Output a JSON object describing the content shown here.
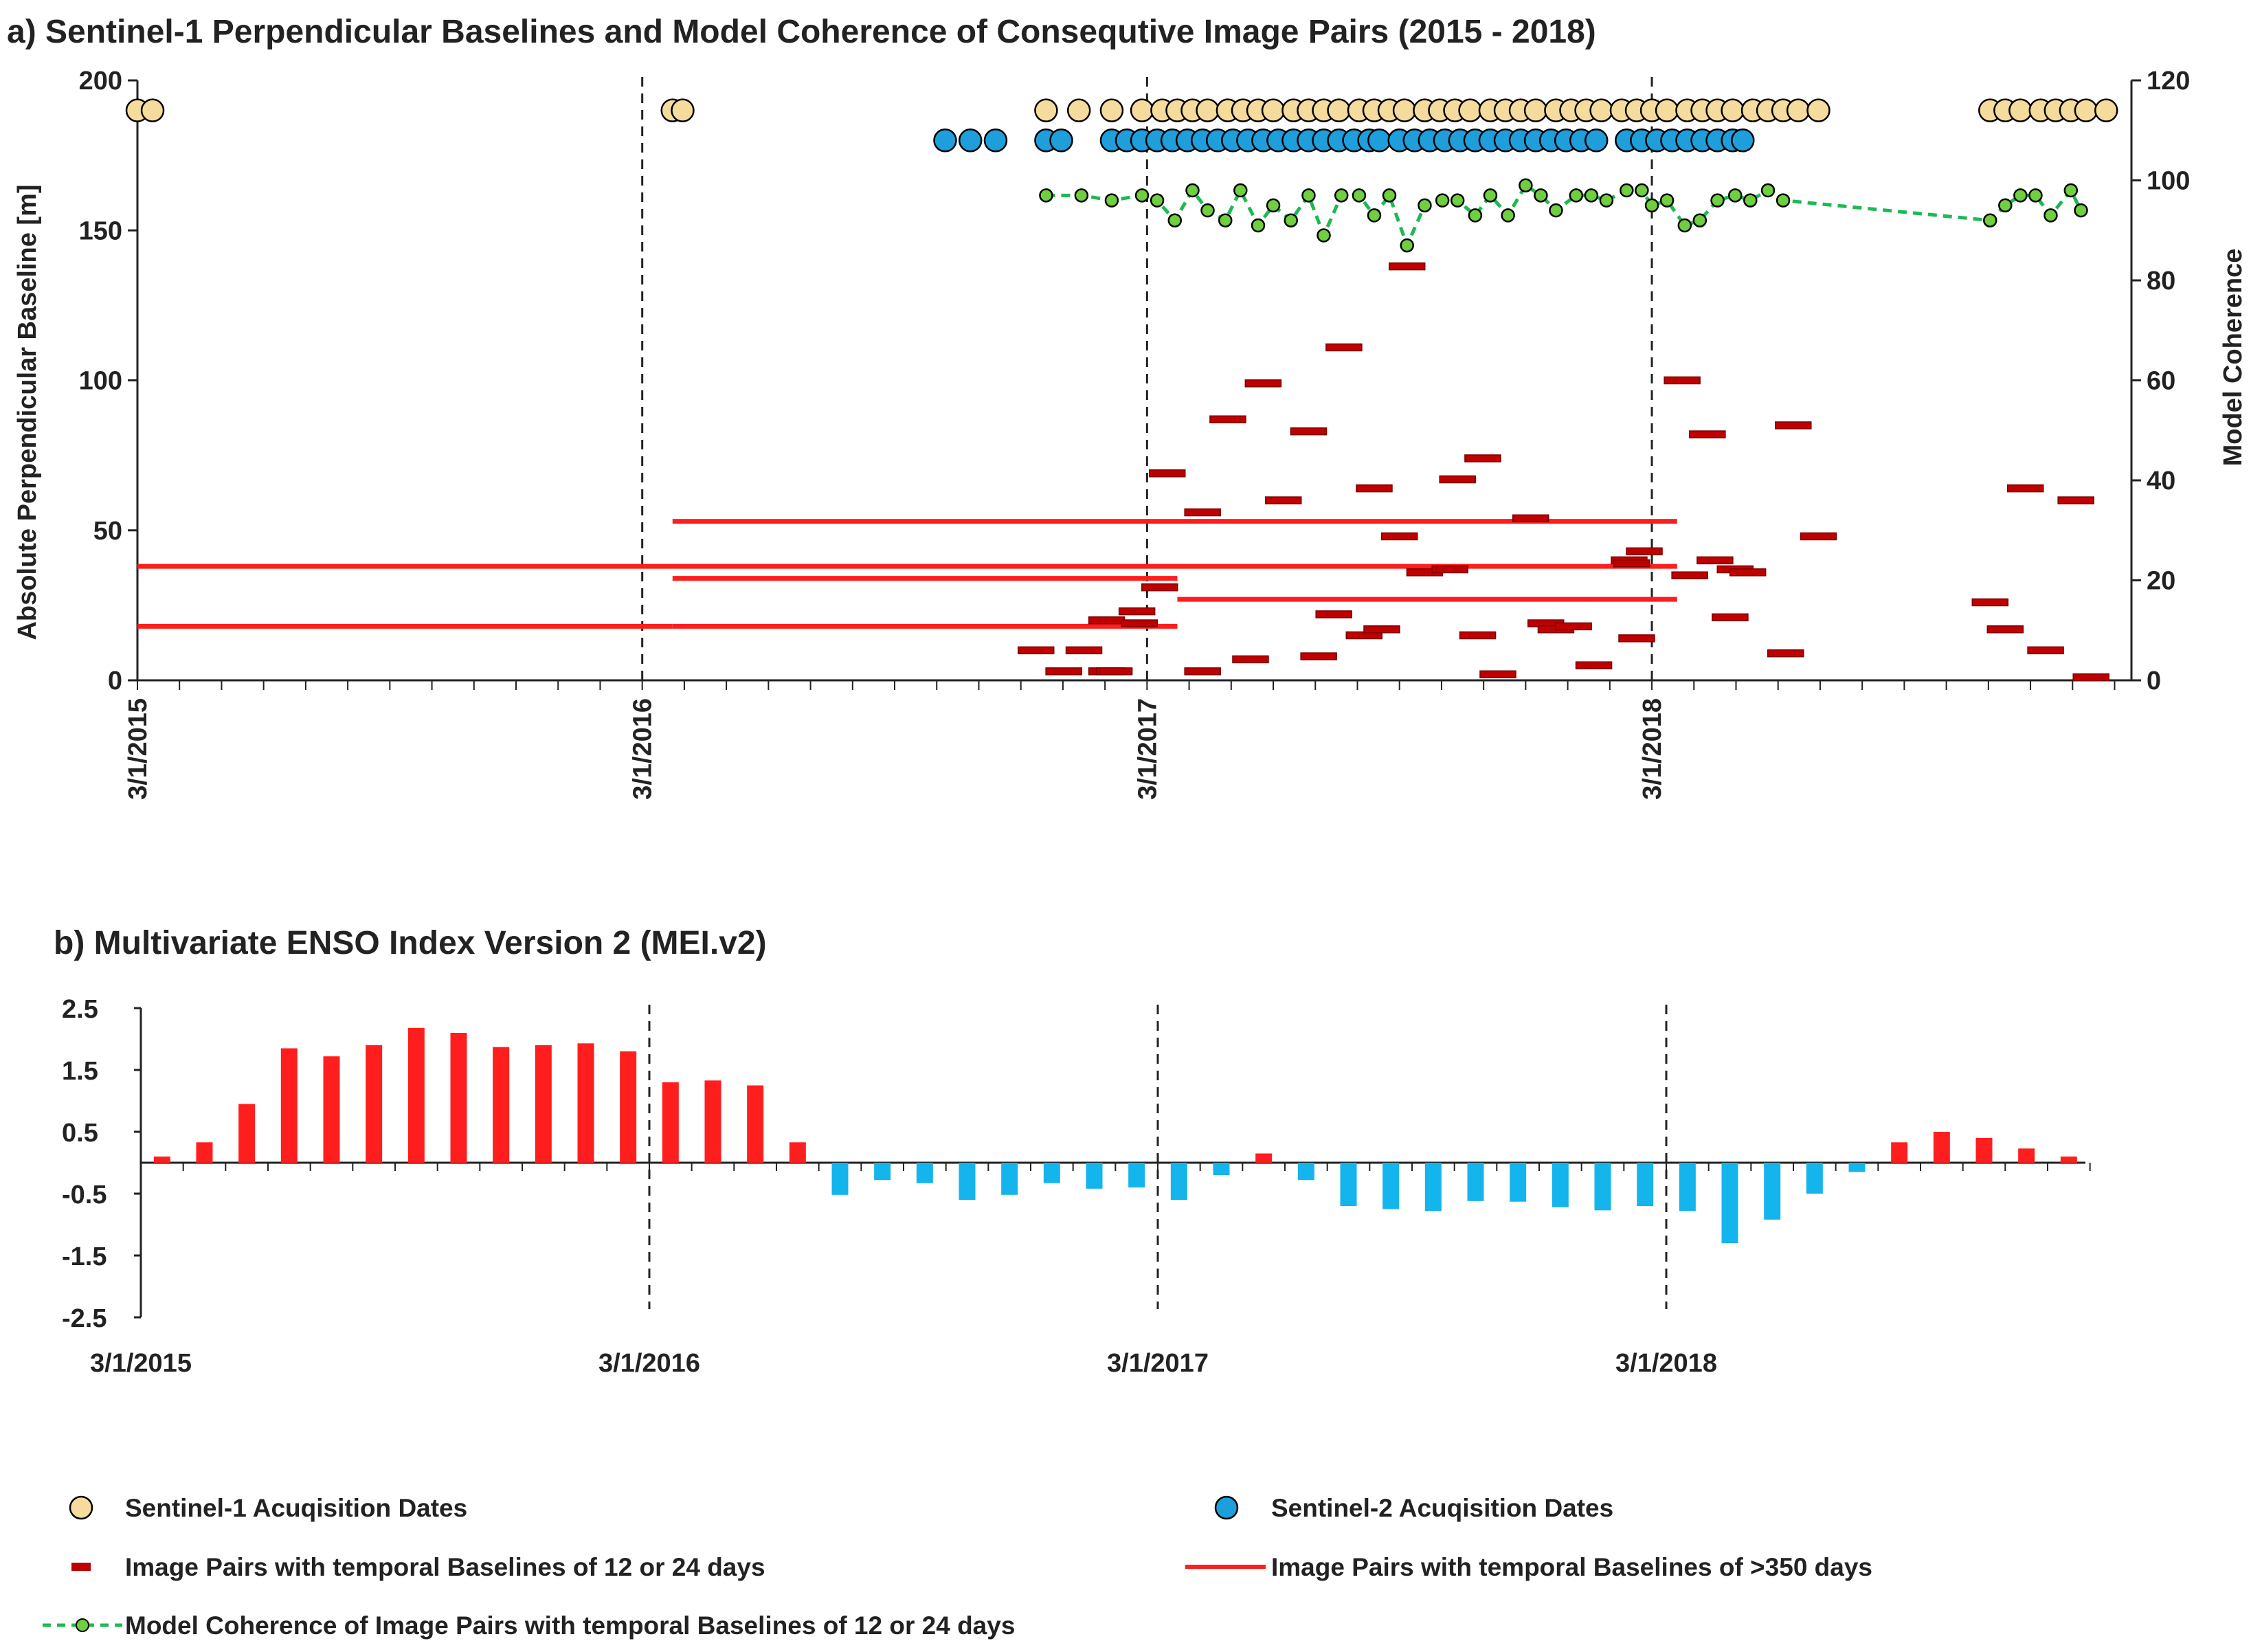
{
  "colors": {
    "s1": "#F5DC9C",
    "s2": "#1E9FDB",
    "pair_short": "#C00000",
    "pair_long": "#FF1E1E",
    "coherence_line": "#1DB954",
    "coherence_fill": "#6FCF3F",
    "mei_pos": "#FF1E1E",
    "mei_neg": "#14B4EC",
    "axis": "#222222"
  },
  "chart_data": [
    {
      "id": "a",
      "type": "scatter",
      "title": "a) Sentinel-1 Perpendicular Baselines and Model Coherence of Consequtive Image Pairs (2015 - 2018)",
      "ylabel": "Absolute Perpendicular Baseline [m]",
      "y2label": "Model Coherence",
      "ylim": [
        0,
        200
      ],
      "y2lim": [
        0,
        120
      ],
      "yticks": [
        "0",
        "50",
        "100",
        "150",
        "200"
      ],
      "y2ticks": [
        "0",
        "20",
        "40",
        "60",
        "80",
        "100",
        "120"
      ],
      "xlim_years": [
        2015.0,
        2018.95
      ],
      "xticks": [
        {
          "label": "3/1/2015",
          "x": 2015.0
        },
        {
          "label": "3/1/2016",
          "x": 2016.0
        },
        {
          "label": "3/1/2017",
          "x": 2017.0
        },
        {
          "label": "3/1/2018",
          "x": 2018.0
        }
      ],
      "dashed_lines": [
        2016.0,
        2017.0,
        2018.0
      ],
      "series": [
        {
          "name": "Sentinel-1 Acuqisition Dates",
          "kind": "s1",
          "y": 190,
          "x": [
            2015.0,
            2015.03,
            2016.06,
            2016.08,
            2016.8,
            2016.865,
            2016.93,
            2016.99,
            2017.03,
            2017.06,
            2017.09,
            2017.12,
            2017.16,
            2017.19,
            2017.22,
            2017.25,
            2017.29,
            2017.32,
            2017.35,
            2017.38,
            2017.42,
            2017.45,
            2017.48,
            2017.51,
            2017.55,
            2017.58,
            2017.61,
            2017.64,
            2017.68,
            2017.71,
            2017.74,
            2017.77,
            2017.81,
            2017.84,
            2017.87,
            2017.9,
            2017.94,
            2017.97,
            2018.0,
            2018.03,
            2018.07,
            2018.1,
            2018.13,
            2018.16,
            2018.2,
            2018.23,
            2018.26,
            2018.29,
            2018.33,
            2018.67,
            2018.7,
            2018.73,
            2018.77,
            2018.8,
            2018.83,
            2018.86,
            2018.9
          ]
        },
        {
          "name": "Sentinel-2 Acuqisition Dates",
          "kind": "s2",
          "y": 180,
          "x": [
            2016.6,
            2016.65,
            2016.7,
            2016.8,
            2016.83,
            2016.93,
            2016.96,
            2016.99,
            2017.02,
            2017.05,
            2017.08,
            2017.11,
            2017.14,
            2017.17,
            2017.2,
            2017.23,
            2017.26,
            2017.29,
            2017.32,
            2017.35,
            2017.38,
            2017.41,
            2017.44,
            2017.46,
            2017.5,
            2017.53,
            2017.56,
            2017.59,
            2017.62,
            2017.65,
            2017.68,
            2017.71,
            2017.74,
            2017.77,
            2017.8,
            2017.83,
            2017.86,
            2017.89,
            2017.95,
            2017.98,
            2018.01,
            2018.04,
            2018.07,
            2018.1,
            2018.13,
            2018.16,
            2018.18
          ]
        },
        {
          "name": "Model Coherence of Image Pairs with temporal Baselines of 12 or 24 days",
          "kind": "coherence",
          "axis": "y2",
          "x": [
            2016.8,
            2016.87,
            2016.93,
            2016.99,
            2017.02,
            2017.055,
            2017.09,
            2017.12,
            2017.155,
            2017.185,
            2017.22,
            2017.25,
            2017.285,
            2017.32,
            2017.35,
            2017.385,
            2017.42,
            2017.45,
            2017.48,
            2017.515,
            2017.55,
            2017.585,
            2017.615,
            2017.65,
            2017.68,
            2017.715,
            2017.75,
            2017.78,
            2017.81,
            2017.85,
            2017.88,
            2017.91,
            2017.95,
            2017.98,
            2018.0,
            2018.03,
            2018.065,
            2018.095,
            2018.13,
            2018.165,
            2018.195,
            2018.23,
            2018.26,
            2018.67,
            2018.7,
            2018.73,
            2018.76,
            2018.79,
            2018.83,
            2018.85
          ],
          "values": [
            97,
            97,
            96,
            97,
            96,
            92,
            98,
            94,
            92,
            98,
            91,
            95,
            92,
            97,
            89,
            97,
            97,
            93,
            97,
            87,
            95,
            96,
            96,
            93,
            97,
            93,
            99,
            97,
            94,
            97,
            97,
            96,
            98,
            98,
            95,
            96,
            91,
            92,
            96,
            97,
            96,
            98,
            96,
            92,
            95,
            97,
            97,
            93,
            98,
            94
          ]
        },
        {
          "name": "Image Pairs with temporal Baselines of 12 or 24 days",
          "kind": "short_pairs",
          "x_center": [
            2016.78,
            2016.835,
            2016.875,
            2016.92,
            2016.92,
            2016.935,
            2016.98,
            2016.985,
            2017.025,
            2017.04,
            2017.11,
            2017.11,
            2017.16,
            2017.205,
            2017.23,
            2017.27,
            2017.32,
            2017.34,
            2017.37,
            2017.39,
            2017.43,
            2017.45,
            2017.465,
            2017.5,
            2017.515,
            2017.55,
            2017.6,
            2017.615,
            2017.655,
            2017.665,
            2017.695,
            2017.76,
            2017.79,
            2017.81,
            2017.845,
            2017.885,
            2017.955,
            2017.96,
            2017.97,
            2017.985,
            2018.06,
            2018.075,
            2018.11,
            2018.125,
            2018.155,
            2018.165,
            2018.19,
            2018.265,
            2018.28,
            2018.33,
            2018.67,
            2018.7,
            2018.74,
            2018.78,
            2018.84,
            2018.87
          ],
          "values": [
            10,
            3,
            10,
            20,
            3,
            3,
            23,
            19,
            31,
            69,
            3,
            56,
            87,
            7,
            99,
            60,
            83,
            8,
            22,
            111,
            15,
            64,
            17,
            48,
            138,
            36,
            37,
            67,
            15,
            74,
            2,
            54,
            19,
            17,
            18,
            5,
            40,
            39,
            14,
            43,
            100,
            35,
            82,
            40,
            21,
            37,
            36,
            9,
            85,
            48,
            26,
            17,
            64,
            10,
            60,
            1
          ]
        },
        {
          "name": "Image Pairs with temporal Baselines of >350 days",
          "kind": "long_pairs",
          "pairs": [
            {
              "x1": 2015.0,
              "x2": 2018.05,
              "y": 38
            },
            {
              "x1": 2015.0,
              "x2": 2016.06,
              "y": 18
            },
            {
              "x1": 2016.06,
              "x2": 2017.06,
              "y": 18
            },
            {
              "x1": 2016.06,
              "x2": 2018.05,
              "y": 53
            },
            {
              "x1": 2016.06,
              "x2": 2017.06,
              "y": 34
            },
            {
              "x1": 2017.06,
              "x2": 2018.05,
              "y": 27
            }
          ]
        }
      ]
    },
    {
      "id": "b",
      "type": "bar",
      "title": "b) Multivariate ENSO Index Version 2 (MEI.v2)",
      "ylim": [
        -2.5,
        2.5
      ],
      "yticks": [
        "2.5",
        "1.5",
        "0.5",
        "-0.5",
        "-1.5",
        "-2.5"
      ],
      "ytick_values": [
        2.5,
        1.5,
        0.5,
        -0.5,
        -1.5,
        -2.5
      ],
      "xticks": [
        "3/1/2015",
        "3/1/2016",
        "3/1/2017",
        "3/1/2018"
      ],
      "dashed_lines": [
        2016.0,
        2017.0,
        2018.0
      ],
      "series": [
        {
          "name": "MEI.v2",
          "values": [
            0.1,
            0.33,
            0.95,
            1.85,
            1.72,
            1.9,
            2.18,
            2.1,
            1.87,
            1.9,
            1.93,
            1.8,
            1.3,
            1.33,
            1.25,
            0.33,
            -0.52,
            -0.28,
            -0.33,
            -0.6,
            -0.52,
            -0.33,
            -0.42,
            -0.4,
            -0.6,
            -0.2,
            0.15,
            -0.28,
            -0.7,
            -0.75,
            -0.78,
            -0.62,
            -0.63,
            -0.72,
            -0.77,
            -0.7,
            -0.78,
            -1.3,
            -0.92,
            -0.5,
            -0.15,
            0.33,
            0.5,
            0.4,
            0.23,
            0.1
          ]
        }
      ]
    }
  ],
  "legend": [
    {
      "label": "Sentinel-1 Acuqisition Dates",
      "kind": "s1"
    },
    {
      "label": "Sentinel-2 Acuqisition Dates",
      "kind": "s2"
    },
    {
      "label": "Image Pairs with temporal Baselines of 12 or 24 days",
      "kind": "short_pairs"
    },
    {
      "label": "Image Pairs with temporal Baselines of >350 days",
      "kind": "long_pairs"
    },
    {
      "label": "Model Coherence of Image Pairs with temporal Baselines of 12 or 24 days",
      "kind": "coherence"
    }
  ]
}
